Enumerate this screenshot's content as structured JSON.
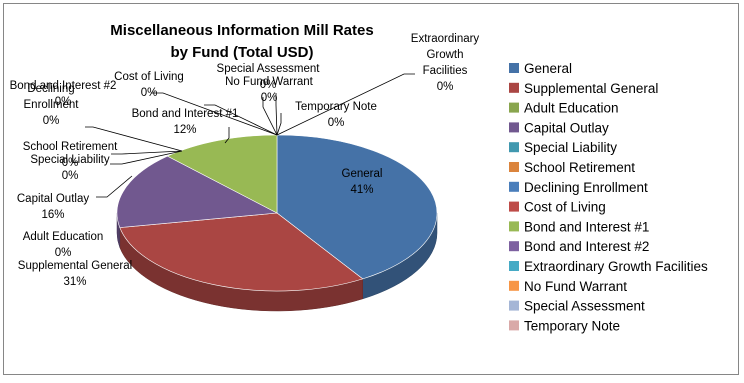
{
  "chart_data": {
    "type": "pie",
    "title_lines": [
      "Miscellaneous Information Mill Rates",
      "by Fund (Total USD)"
    ],
    "categories": [
      "General",
      "Supplemental General",
      "Adult Education",
      "Capital Outlay",
      "Special Liability",
      "School Retirement",
      "Declining Enrollment",
      "Cost of Living",
      "Bond and Interest #1",
      "Bond and Interest #2",
      "Extraordinary Growth Facilities",
      "No Fund Warrant",
      "Special Assessment",
      "Temporary Note"
    ],
    "values": [
      41,
      31,
      0,
      16,
      0,
      0,
      0,
      0,
      12,
      0,
      0,
      0,
      0,
      0
    ],
    "colors": [
      "#4572a7",
      "#aa4643",
      "#89a54e",
      "#71588f",
      "#4198af",
      "#db843d",
      "#4a7ebb",
      "#be4b48",
      "#98b954",
      "#7d60a0",
      "#46aac5",
      "#f79646",
      "#a5b6d6",
      "#d9a9a8"
    ],
    "data_labels": [
      {
        "lines": [
          "General",
          "41%"
        ]
      },
      {
        "lines": [
          "Supplemental General",
          "31%"
        ]
      },
      {
        "lines": [
          "Adult Education",
          "0%"
        ]
      },
      {
        "lines": [
          "Capital Outlay",
          "16%"
        ]
      },
      {
        "lines": [
          "Special Liability",
          "0%"
        ]
      },
      {
        "lines": [
          "School Retirement",
          "0%"
        ]
      },
      {
        "lines": [
          "Declining",
          "Enrollment",
          "0%"
        ]
      },
      {
        "lines": [
          "Cost of Living",
          "0%"
        ]
      },
      {
        "lines": [
          "Bond and Interest #1",
          "12%"
        ]
      },
      {
        "lines": [
          "Bond and Interest #2",
          "0%"
        ]
      },
      {
        "lines": [
          "Extraordinary",
          "Growth",
          "Facilities",
          "0%"
        ]
      },
      {
        "lines": [
          "No Fund Warrant",
          "0%"
        ]
      },
      {
        "lines": [
          "Special Assessment",
          "0%"
        ]
      },
      {
        "lines": [
          "Temporary Note",
          "0%"
        ]
      }
    ],
    "legend_position": "right",
    "three_d": true
  }
}
